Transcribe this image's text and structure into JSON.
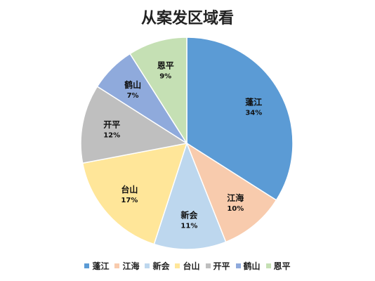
{
  "chart_data": {
    "type": "pie",
    "title": "从案发区域看",
    "slices": [
      {
        "label": "蓬江",
        "value": 34,
        "display": "34%",
        "color": "#5b9bd5"
      },
      {
        "label": "江海",
        "value": 10,
        "display": "10%",
        "color": "#f8cbad"
      },
      {
        "label": "新会",
        "value": 11,
        "display": "11%",
        "color": "#bdd7ee"
      },
      {
        "label": "台山",
        "value": 17,
        "display": "17%",
        "color": "#ffe699"
      },
      {
        "label": "开平",
        "value": 12,
        "display": "12%",
        "color": "#bfbfbf"
      },
      {
        "label": "鹤山",
        "value": 7,
        "display": "7%",
        "color": "#8faadc"
      },
      {
        "label": "恩平",
        "value": 9,
        "display": "9%",
        "color": "#c5e0b4"
      }
    ],
    "legend_position": "bottom"
  }
}
